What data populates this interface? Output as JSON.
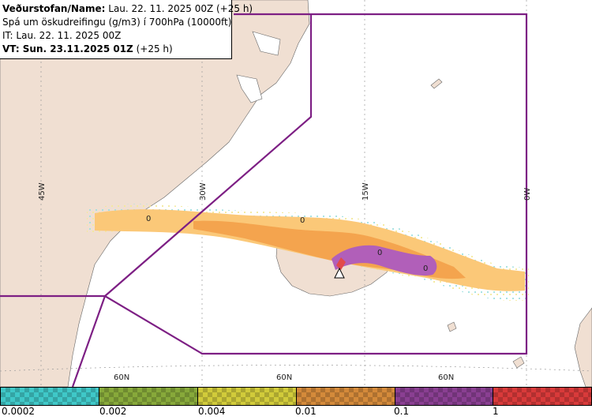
{
  "header": {
    "line1_label": "Veðurstofan/Name:",
    "line1_value": "Lau. 22. 11. 2025 00Z (+25 h)",
    "line2": "Spá um öskudreifingu (g/m3) í 700hPa (10000ft)",
    "line3": "IT: Lau. 22. 11. 2025 00Z",
    "line4_label": "VT: Sun. 23.11.2025 01Z",
    "line4_value": "(+25 h)"
  },
  "map": {
    "meridian_labels": [
      "45W",
      "30W",
      "15W",
      "0W"
    ],
    "parallel_labels": [
      "60N",
      "60N",
      "60N"
    ],
    "contour_labels": [
      "0",
      "0",
      "0",
      "0"
    ],
    "colors": {
      "land": "#f0dfd2",
      "sea": "#ffffff",
      "boundary": "#7d1f84",
      "plume_light": "#fbc878",
      "plume_mid": "#f4a44e",
      "plume_core": "#b15fb9",
      "plume_peak": "#e24a4a"
    }
  },
  "legend": {
    "tick_labels": [
      "0.0002",
      "0.002",
      "0.004",
      "0.01",
      "0.1",
      "1"
    ],
    "colors": [
      "#3fc8c8",
      "#87a93a",
      "#d1cb3a",
      "#d48a3a",
      "#8a3f92",
      "#d93a3a"
    ]
  }
}
